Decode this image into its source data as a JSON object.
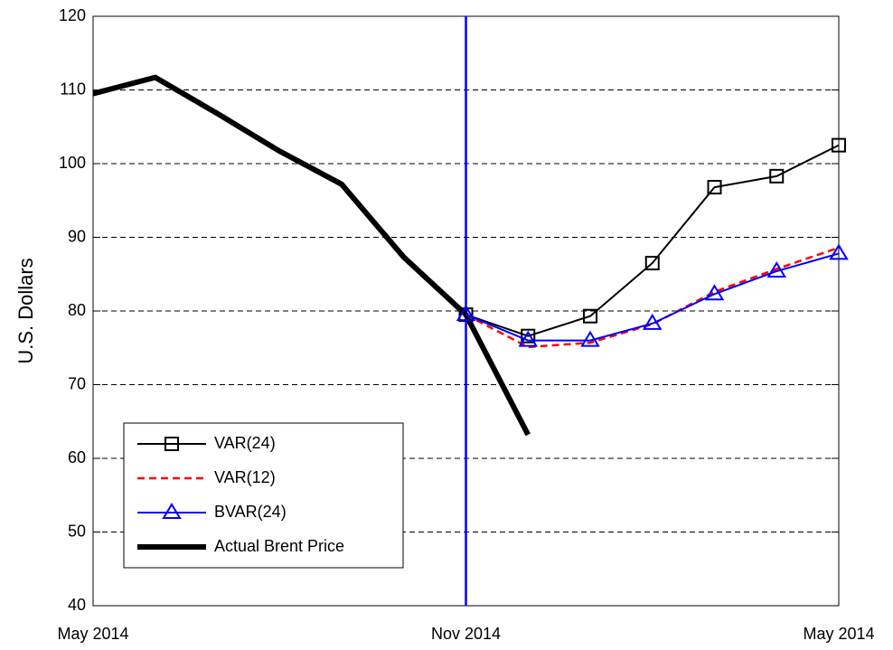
{
  "chart_data": {
    "type": "line",
    "ylabel": "U.S. Dollars",
    "categories": [
      "May 2014",
      null,
      null,
      null,
      null,
      null,
      "Nov 2014",
      null,
      null,
      null,
      null,
      null,
      "May 2014"
    ],
    "series": [
      {
        "name": "VAR(24)",
        "color": "#000000",
        "marker": "square",
        "dash": false,
        "width": 2,
        "values": [
          null,
          null,
          null,
          null,
          null,
          null,
          79.5,
          76.6,
          79.3,
          86.5,
          96.8,
          98.3,
          102.5
        ]
      },
      {
        "name": "VAR(12)",
        "color": "#ff0000",
        "marker": "none",
        "dash": true,
        "width": 2.5,
        "values": [
          null,
          null,
          null,
          null,
          null,
          null,
          79.5,
          75.1,
          75.7,
          78.2,
          82.6,
          85.7,
          88.6
        ]
      },
      {
        "name": "BVAR(24)",
        "color": "#0000ff",
        "marker": "triangle",
        "dash": false,
        "width": 2,
        "values": [
          null,
          null,
          null,
          null,
          null,
          null,
          79.5,
          76.0,
          76.0,
          78.3,
          82.3,
          85.4,
          87.8
        ]
      },
      {
        "name": "Actual Brent Price",
        "color": "#000000",
        "marker": "none",
        "dash": false,
        "width": 6,
        "values": [
          109.5,
          111.7,
          106.8,
          101.7,
          97.2,
          87.3,
          79.5,
          63.2,
          null,
          null,
          null,
          null,
          null
        ]
      }
    ],
    "ylim": [
      40,
      120
    ],
    "yticks": [
      40,
      50,
      60,
      70,
      80,
      90,
      100,
      110,
      120
    ],
    "grid": true,
    "legend": "lower left",
    "vertical_line": {
      "at": "Nov 2014",
      "color": "#0000ff"
    }
  }
}
